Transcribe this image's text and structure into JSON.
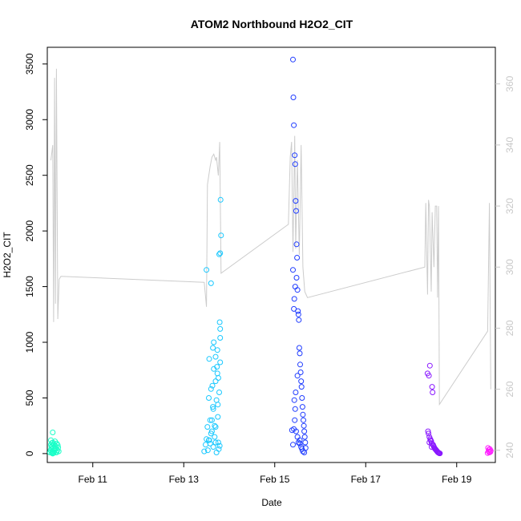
{
  "chart_data": {
    "type": "scatter",
    "title": "ATOM2 Northbound H2O2_CIT",
    "xlabel": "Date",
    "ylabel": "H2O2_CIT",
    "xlim": [
      10.0,
      19.85
    ],
    "ylim": [
      -80,
      3650
    ],
    "y2lim": [
      236,
      372
    ],
    "x_ticks": [
      {
        "x": 11,
        "label": "Feb 11"
      },
      {
        "x": 13,
        "label": "Feb 13"
      },
      {
        "x": 15,
        "label": "Feb 15"
      },
      {
        "x": 17,
        "label": "Feb 17"
      },
      {
        "x": 19,
        "label": "Feb 19"
      }
    ],
    "y_ticks": [
      0,
      500,
      1000,
      1500,
      2000,
      2500,
      3000,
      3500
    ],
    "y2_ticks": [
      240,
      260,
      280,
      300,
      320,
      340,
      360
    ],
    "line_color": "#cccccc",
    "point_colors": [
      "#19ffc8",
      "#19c8ff",
      "#1f3cff",
      "#8a19ff",
      "#ff19ff"
    ],
    "line": [
      [
        10.08,
        335
      ],
      [
        10.12,
        340
      ],
      [
        10.14,
        282
      ],
      [
        10.16,
        362
      ],
      [
        10.18,
        288
      ],
      [
        10.2,
        365
      ],
      [
        10.23,
        283
      ],
      [
        10.26,
        296
      ],
      [
        10.3,
        297
      ],
      [
        13.45,
        295
      ],
      [
        13.5,
        287
      ],
      [
        13.52,
        327
      ],
      [
        13.58,
        333
      ],
      [
        13.62,
        336
      ],
      [
        13.66,
        337
      ],
      [
        13.7,
        335
      ],
      [
        13.72,
        336
      ],
      [
        13.76,
        330
      ],
      [
        13.79,
        341
      ],
      [
        13.82,
        298
      ],
      [
        15.3,
        314
      ],
      [
        15.34,
        336
      ],
      [
        15.37,
        341
      ],
      [
        15.4,
        305
      ],
      [
        15.44,
        343
      ],
      [
        15.46,
        306
      ],
      [
        15.5,
        335
      ],
      [
        15.54,
        304
      ],
      [
        15.58,
        340
      ],
      [
        15.62,
        300
      ],
      [
        15.66,
        292
      ],
      [
        15.72,
        290
      ],
      [
        18.3,
        300
      ],
      [
        18.32,
        321
      ],
      [
        18.36,
        291
      ],
      [
        18.38,
        322
      ],
      [
        18.4,
        320
      ],
      [
        18.44,
        292
      ],
      [
        18.46,
        318
      ],
      [
        18.5,
        300
      ],
      [
        18.53,
        320
      ],
      [
        18.56,
        320
      ],
      [
        18.58,
        290
      ],
      [
        18.6,
        320
      ],
      [
        18.62,
        255
      ],
      [
        19.68,
        279
      ],
      [
        19.72,
        321
      ],
      [
        19.75,
        260
      ]
    ],
    "series": [
      {
        "x": [
          10.06,
          10.07,
          10.08,
          10.08,
          10.09,
          10.09,
          10.1,
          10.1,
          10.11,
          10.11,
          10.12,
          10.12,
          10.13,
          10.14,
          10.15,
          10.15,
          10.16,
          10.17,
          10.18,
          10.19,
          10.2,
          10.21,
          10.22,
          10.23,
          10.24,
          10.25,
          10.12,
          10.14,
          10.1,
          10.2
        ],
        "y": [
          10,
          30,
          80,
          120,
          40,
          60,
          5,
          95,
          20,
          70,
          190,
          100,
          50,
          15,
          85,
          35,
          25,
          110,
          45,
          65,
          10,
          90,
          30,
          75,
          55,
          20,
          0,
          5,
          8,
          12
        ]
      },
      {
        "x": [
          13.45,
          13.48,
          13.5,
          13.52,
          13.53,
          13.55,
          13.56,
          13.58,
          13.6,
          13.6,
          13.62,
          13.63,
          13.64,
          13.65,
          13.66,
          13.68,
          13.7,
          13.7,
          13.72,
          13.73,
          13.74,
          13.75,
          13.76,
          13.77,
          13.78,
          13.79,
          13.8,
          13.8,
          13.81,
          13.82,
          13.55,
          13.58,
          13.62,
          13.65,
          13.68,
          13.7,
          13.72,
          13.75,
          13.78,
          13.8,
          13.5,
          13.6,
          13.66,
          13.74,
          13.8,
          13.56,
          13.64,
          13.7,
          13.76,
          13.79
        ],
        "y": [
          20,
          80,
          130,
          240,
          30,
          500,
          120,
          90,
          180,
          580,
          300,
          610,
          950,
          400,
          1000,
          250,
          870,
          650,
          10,
          780,
          930,
          440,
          680,
          40,
          550,
          1180,
          1040,
          1120,
          2280,
          1960,
          120,
          300,
          200,
          60,
          150,
          100,
          480,
          330,
          1790,
          1800,
          1650,
          1530,
          760,
          720,
          820,
          850,
          420,
          240,
          100,
          70
        ]
      },
      {
        "x": [
          15.38,
          15.4,
          15.41,
          15.42,
          15.43,
          15.44,
          15.45,
          15.46,
          15.47,
          15.48,
          15.49,
          15.5,
          15.51,
          15.52,
          15.53,
          15.54,
          15.55,
          15.56,
          15.57,
          15.58,
          15.59,
          15.6,
          15.61,
          15.62,
          15.63,
          15.64,
          15.65,
          15.66,
          15.67,
          15.68,
          15.45,
          15.47,
          15.5,
          15.52,
          15.55,
          15.58,
          15.6,
          15.62,
          15.65,
          15.45,
          15.43,
          15.42,
          15.4,
          15.48,
          15.5,
          15.46,
          15.44,
          15.42,
          15.4,
          15.55
        ],
        "y": [
          210,
          3540,
          3200,
          2950,
          480,
          2680,
          2600,
          2270,
          2180,
          1880,
          1760,
          1470,
          1280,
          1250,
          1200,
          950,
          900,
          800,
          730,
          650,
          600,
          500,
          420,
          350,
          300,
          250,
          200,
          150,
          100,
          50,
          400,
          200,
          150,
          100,
          90,
          60,
          40,
          20,
          10,
          1500,
          1390,
          1300,
          1650,
          1580,
          700,
          550,
          300,
          220,
          80,
          120
        ]
      },
      {
        "x": [
          18.36,
          18.37,
          18.38,
          18.39,
          18.4,
          18.41,
          18.42,
          18.43,
          18.44,
          18.45,
          18.46,
          18.47,
          18.48,
          18.49,
          18.5,
          18.51,
          18.52,
          18.53,
          18.54,
          18.55,
          18.56,
          18.57,
          18.58,
          18.59,
          18.6,
          18.61,
          18.62,
          18.63,
          18.4,
          18.45
        ],
        "y": [
          720,
          200,
          180,
          700,
          150,
          790,
          130,
          120,
          110,
          90,
          600,
          550,
          80,
          70,
          60,
          50,
          45,
          40,
          35,
          30,
          25,
          20,
          15,
          10,
          8,
          5,
          3,
          2,
          100,
          60
        ]
      },
      {
        "x": [
          19.68,
          19.69,
          19.7,
          19.71,
          19.72,
          19.73,
          19.74,
          19.75
        ],
        "y": [
          5,
          50,
          20,
          35,
          10,
          40,
          15,
          25
        ]
      }
    ]
  }
}
